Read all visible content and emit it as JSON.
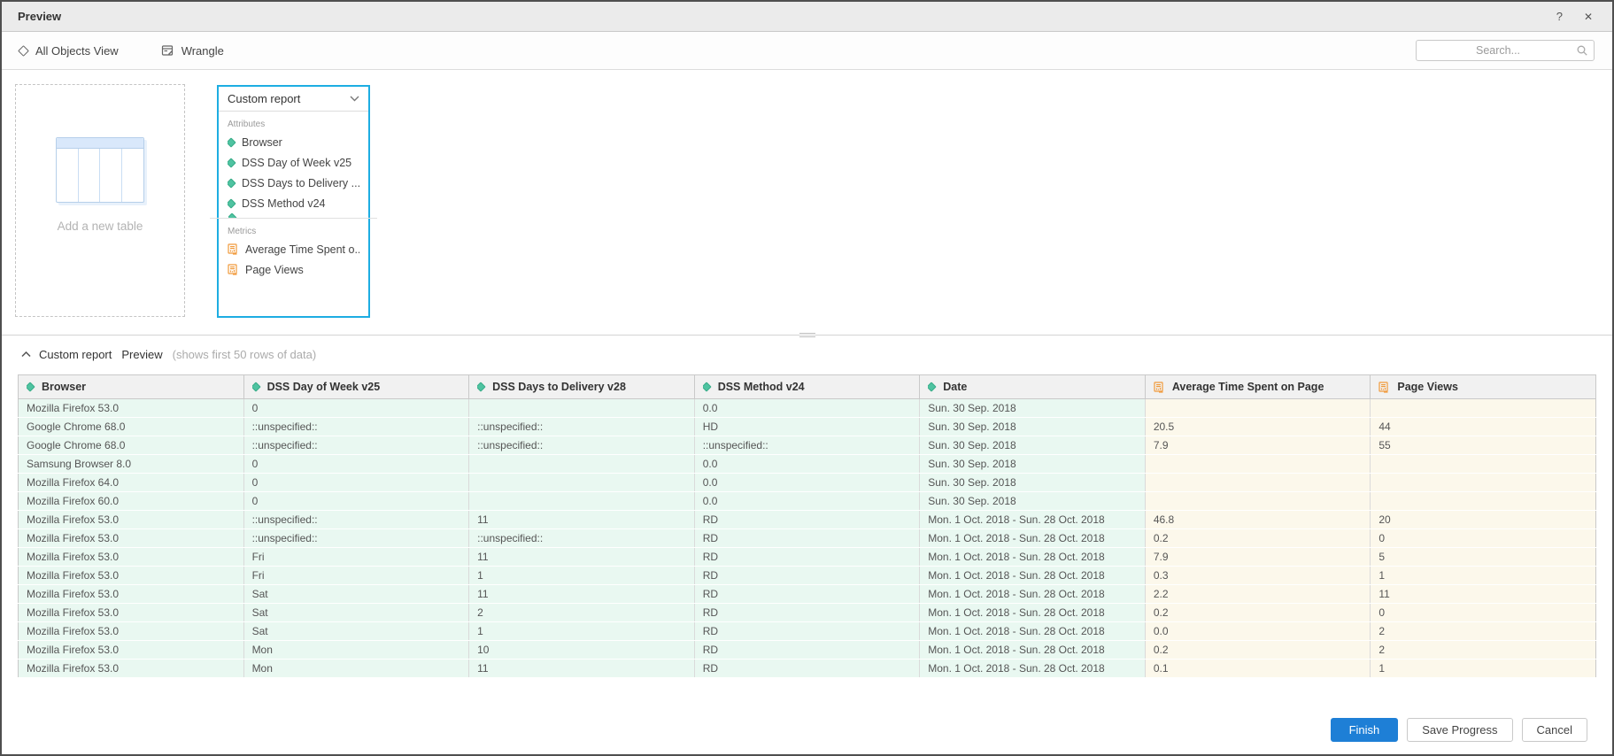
{
  "window": {
    "title": "Preview",
    "help_glyph": "?",
    "close_glyph": "✕"
  },
  "toolbar": {
    "all_objects_view_label": "All Objects View",
    "wrangle_label": "Wrangle",
    "search_placeholder": "Search..."
  },
  "canvas": {
    "add_table_label": "Add a new table",
    "dataset_panel": {
      "title": "Custom report",
      "attributes_label": "Attributes",
      "metrics_label": "Metrics",
      "attributes": [
        "Browser",
        "DSS Day of Week v25",
        "DSS Days to Delivery ...",
        "DSS Method v24"
      ],
      "metrics": [
        "Average Time Spent o...",
        "Page Views"
      ]
    }
  },
  "preview_section": {
    "title": "Custom report",
    "subtitle": "Preview",
    "note": "(shows first 50 rows of data)"
  },
  "preview_table": {
    "columns": [
      {
        "label": "Browser",
        "type": "attribute"
      },
      {
        "label": "DSS Day of Week v25",
        "type": "attribute"
      },
      {
        "label": "DSS Days to Delivery v28",
        "type": "attribute"
      },
      {
        "label": "DSS Method v24",
        "type": "attribute"
      },
      {
        "label": "Date",
        "type": "attribute"
      },
      {
        "label": "Average Time Spent on Page",
        "type": "metric"
      },
      {
        "label": "Page Views",
        "type": "metric"
      }
    ],
    "rows": [
      [
        "Mozilla Firefox 53.0",
        "0",
        "",
        "0.0",
        "Sun. 30 Sep. 2018",
        "",
        ""
      ],
      [
        "Google Chrome 68.0",
        "::unspecified::",
        "::unspecified::",
        "HD",
        "Sun. 30 Sep. 2018",
        "20.5",
        "44"
      ],
      [
        "Google Chrome 68.0",
        "::unspecified::",
        "::unspecified::",
        "::unspecified::",
        "Sun. 30 Sep. 2018",
        "7.9",
        "55"
      ],
      [
        "Samsung Browser 8.0",
        "0",
        "",
        "0.0",
        "Sun. 30 Sep. 2018",
        "",
        ""
      ],
      [
        "Mozilla Firefox 64.0",
        "0",
        "",
        "0.0",
        "Sun. 30 Sep. 2018",
        "",
        ""
      ],
      [
        "Mozilla Firefox 60.0",
        "0",
        "",
        "0.0",
        "Sun. 30 Sep. 2018",
        "",
        ""
      ],
      [
        "Mozilla Firefox 53.0",
        "::unspecified::",
        "11",
        "RD",
        "Mon. 1 Oct. 2018 - Sun. 28 Oct. 2018",
        "46.8",
        "20"
      ],
      [
        "Mozilla Firefox 53.0",
        "::unspecified::",
        "::unspecified::",
        "RD",
        "Mon. 1 Oct. 2018 - Sun. 28 Oct. 2018",
        "0.2",
        "0"
      ],
      [
        "Mozilla Firefox 53.0",
        "Fri",
        "11",
        "RD",
        "Mon. 1 Oct. 2018 - Sun. 28 Oct. 2018",
        "7.9",
        "5"
      ],
      [
        "Mozilla Firefox 53.0",
        "Fri",
        "1",
        "RD",
        "Mon. 1 Oct. 2018 - Sun. 28 Oct. 2018",
        "0.3",
        "1"
      ],
      [
        "Mozilla Firefox 53.0",
        "Sat",
        "11",
        "RD",
        "Mon. 1 Oct. 2018 - Sun. 28 Oct. 2018",
        "2.2",
        "11"
      ],
      [
        "Mozilla Firefox 53.0",
        "Sat",
        "2",
        "RD",
        "Mon. 1 Oct. 2018 - Sun. 28 Oct. 2018",
        "0.2",
        "0"
      ],
      [
        "Mozilla Firefox 53.0",
        "Sat",
        "1",
        "RD",
        "Mon. 1 Oct. 2018 - Sun. 28 Oct. 2018",
        "0.0",
        "2"
      ],
      [
        "Mozilla Firefox 53.0",
        "Mon",
        "10",
        "RD",
        "Mon. 1 Oct. 2018 - Sun. 28 Oct. 2018",
        "0.2",
        "2"
      ],
      [
        "Mozilla Firefox 53.0",
        "Mon",
        "11",
        "RD",
        "Mon. 1 Oct. 2018 - Sun. 28 Oct. 2018",
        "0.1",
        "1"
      ]
    ]
  },
  "footer": {
    "finish_label": "Finish",
    "save_progress_label": "Save Progress",
    "cancel_label": "Cancel"
  },
  "colors": {
    "accent_cyan": "#1dade2",
    "attribute_teal": "#4fc3a1",
    "metric_orange": "#f19b3d",
    "finish_blue": "#1e7fd6",
    "attribute_cell_bg": "#e9f8f1",
    "metric_cell_bg": "#fcf8eb",
    "titlebar_bg": "#ebebeb",
    "table_header_bg": "#f1f1f1"
  }
}
